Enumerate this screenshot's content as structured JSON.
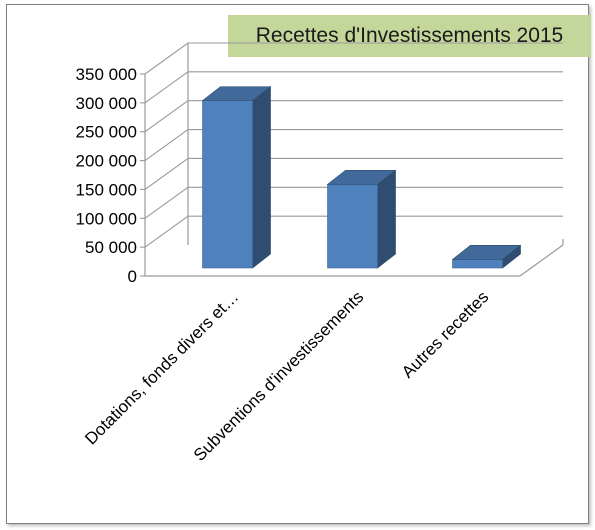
{
  "chart_data": {
    "type": "bar",
    "title": "Recettes d'Investissements 2015",
    "categories": [
      "Dotations, fonds divers et…",
      "Subventions d'investissements",
      "Autres recettes"
    ],
    "values": [
      290000,
      145000,
      15000
    ],
    "ylim": [
      0,
      350000
    ],
    "yticks": [
      "0",
      "50 000",
      "100 000",
      "150 000",
      "200 000",
      "250 000",
      "300 000",
      "350 000"
    ],
    "grid": true,
    "bar_color": "#4f81bd",
    "title_background": "#c4d79b"
  }
}
